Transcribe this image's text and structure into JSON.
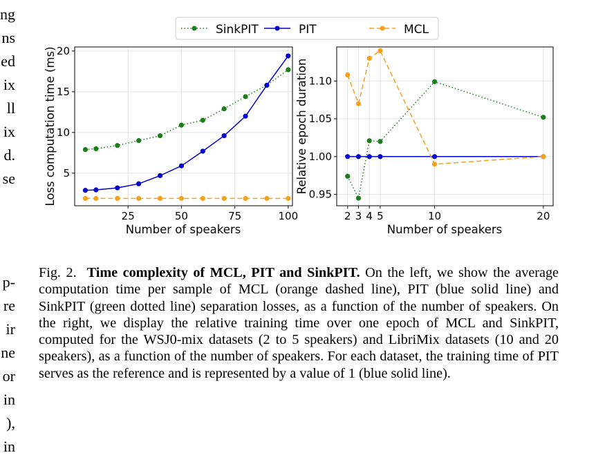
{
  "left_column_fragments": [
    "ng",
    "ns",
    "ed",
    "ix",
    "ll",
    "ix",
    "d.",
    "se",
    "p-",
    "re",
    "ir",
    "ne",
    "or",
    "in",
    "),",
    "in"
  ],
  "legend": {
    "items": [
      {
        "name": "SinkPIT",
        "color": "#1a7f1a",
        "style": "dotted"
      },
      {
        "name": "PIT",
        "color": "#0000cc",
        "style": "solid"
      },
      {
        "name": "MCL",
        "color": "#f5a11a",
        "style": "dashed"
      }
    ]
  },
  "chart_data": [
    {
      "type": "line",
      "title": "",
      "xlabel": "Number of speakers",
      "ylabel": "Loss computation time (ms)",
      "xlim": [
        0,
        102
      ],
      "ylim": [
        1,
        20.5
      ],
      "xticks": [
        25,
        50,
        75,
        100
      ],
      "yticks": [
        5,
        10,
        15,
        20
      ],
      "grid": true,
      "series": [
        {
          "name": "SinkPIT",
          "color": "#1a7f1a",
          "style": "dotted",
          "x": [
            5,
            10,
            20,
            30,
            40,
            50,
            60,
            70,
            80,
            90,
            100
          ],
          "y": [
            7.9,
            8.0,
            8.4,
            9.0,
            9.6,
            10.9,
            11.5,
            12.9,
            14.4,
            15.8,
            17.7
          ]
        },
        {
          "name": "PIT",
          "color": "#0000cc",
          "style": "solid",
          "x": [
            5,
            10,
            20,
            30,
            40,
            50,
            60,
            70,
            80,
            90,
            100
          ],
          "y": [
            2.9,
            2.95,
            3.2,
            3.7,
            4.7,
            5.9,
            7.7,
            9.6,
            12.0,
            15.8,
            19.4
          ]
        },
        {
          "name": "MCL",
          "color": "#f5a11a",
          "style": "dashed",
          "x": [
            5,
            10,
            20,
            30,
            40,
            50,
            60,
            70,
            80,
            90,
            100
          ],
          "y": [
            1.9,
            1.9,
            1.9,
            1.9,
            1.9,
            1.9,
            1.9,
            1.9,
            1.9,
            1.9,
            1.9
          ]
        }
      ]
    },
    {
      "type": "line",
      "title": "",
      "xlabel": "Number of speakers",
      "ylabel": "Relative epoch duration",
      "xlim": [
        1.0,
        20.9
      ],
      "ylim": [
        0.935,
        1.145
      ],
      "xticks": [
        2,
        3,
        4,
        5,
        10,
        20
      ],
      "yticks": [
        0.95,
        1.0,
        1.05,
        1.1
      ],
      "ytick_labels": [
        "0.95",
        "1.00",
        "1.05",
        "1.10"
      ],
      "grid": true,
      "series": [
        {
          "name": "SinkPIT",
          "color": "#1a7f1a",
          "style": "dotted",
          "x": [
            2,
            3,
            4,
            5,
            10,
            20
          ],
          "y": [
            0.974,
            0.945,
            1.021,
            1.02,
            1.099,
            1.052
          ]
        },
        {
          "name": "PIT",
          "color": "#0000cc",
          "style": "solid",
          "x": [
            2,
            3,
            4,
            5,
            10,
            20
          ],
          "y": [
            1.0,
            1.0,
            1.0,
            1.0,
            1.0,
            1.0
          ]
        },
        {
          "name": "MCL",
          "color": "#f5a11a",
          "style": "dashed",
          "x": [
            2,
            3,
            4,
            5,
            10,
            20
          ],
          "y": [
            1.108,
            1.07,
            1.13,
            1.14,
            0.99,
            1.0
          ]
        }
      ]
    }
  ],
  "caption": {
    "label": "Fig. 2.",
    "title": "Time complexity of MCL, PIT and SinkPIT.",
    "body": "On the left, we show the average computation time per sample of MCL (orange dashed line), PIT (blue solid line) and SinkPIT (green dotted line) separation losses, as a function of the number of speakers. On the right, we display the relative training time over one epoch of MCL and SinkPIT, computed for the WSJ0-mix datasets (2 to 5 speakers) and LibriMix datasets (10 and 20 speakers), as a function of the number of speakers. For each dataset, the training time of PIT serves as the reference and is represented by a value of 1 (blue solid line)."
  }
}
